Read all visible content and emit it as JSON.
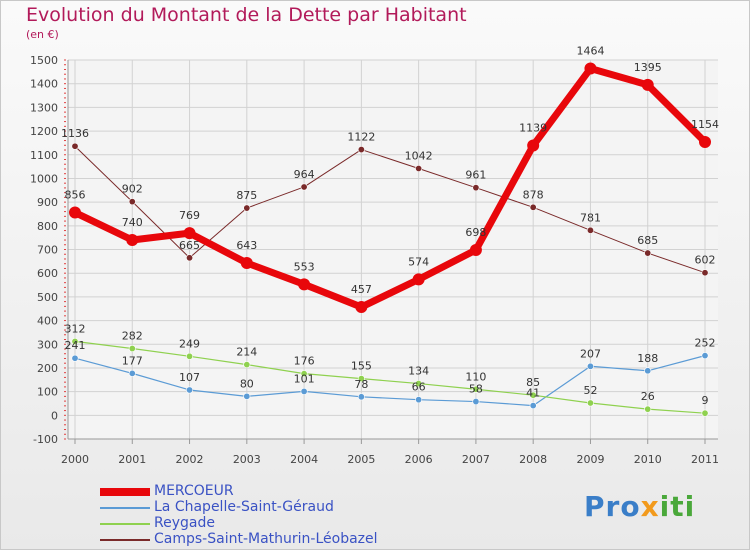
{
  "title": "Evolution du Montant de la Dette par Habitant",
  "unit": "(en €)",
  "brand": {
    "part1": "Pro",
    "part2": "x",
    "part3": "iti"
  },
  "chart_data": {
    "type": "line",
    "title": "Evolution du Montant de la Dette par Habitant",
    "ylabel": "(en €)",
    "x": [
      2000,
      2001,
      2002,
      2003,
      2004,
      2005,
      2006,
      2007,
      2008,
      2009,
      2010,
      2011
    ],
    "ylim": [
      -100,
      1500
    ],
    "yticks": [
      -100,
      0,
      100,
      200,
      300,
      400,
      500,
      600,
      700,
      800,
      900,
      1000,
      1100,
      1200,
      1300,
      1400,
      1500
    ],
    "grid": true,
    "legend": "bottom-left",
    "series": [
      {
        "name": "MERCOEUR",
        "color": "#e8070b",
        "width": 7,
        "marker": 6,
        "values": [
          856,
          740,
          769,
          643,
          553,
          457,
          574,
          698,
          1139,
          1464,
          1395,
          1154
        ],
        "labels": [
          "856",
          "740",
          "769",
          "643",
          "553",
          "457",
          "574",
          "698",
          "1139",
          "1464",
          "1395",
          "1154"
        ]
      },
      {
        "name": "La Chapelle-Saint-Géraud",
        "color": "#5b9bd5",
        "width": 1.2,
        "marker": 3.2,
        "values": [
          241,
          177,
          107,
          80,
          101,
          78,
          66,
          58,
          41,
          207,
          188,
          252
        ],
        "labels": [
          "241",
          "177",
          "107",
          "80",
          "101",
          "78",
          "66",
          "58",
          "41",
          "207",
          "188",
          "252"
        ]
      },
      {
        "name": "Reygade",
        "color": "#8fd14f",
        "width": 1.2,
        "marker": 3.2,
        "values": [
          312,
          282,
          249,
          214,
          176,
          155,
          134,
          110,
          85,
          52,
          26,
          9
        ],
        "labels": [
          "312",
          "282",
          "249",
          "214",
          "176",
          "155",
          "134",
          "110",
          "85",
          "52",
          "26",
          "9"
        ]
      },
      {
        "name": "Camps-Saint-Mathurin-Léobazel",
        "color": "#7a2a2a",
        "width": 1,
        "marker": 3.2,
        "values": [
          1136,
          902,
          665,
          875,
          964,
          1122,
          1042,
          961,
          878,
          781,
          685,
          602
        ],
        "labels": [
          "1136",
          "902",
          "665",
          "875",
          "964",
          "1122",
          "1042",
          "961",
          "878",
          "781",
          "685",
          "602"
        ]
      }
    ]
  }
}
